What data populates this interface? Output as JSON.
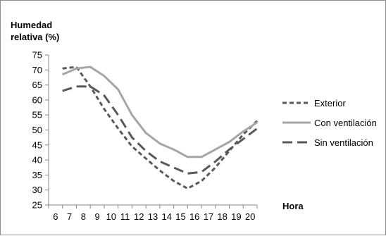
{
  "chart_data": {
    "type": "line",
    "title": "",
    "ylabel_lines": [
      "Humedad",
      "relativa (%)"
    ],
    "xlabel": "Hora",
    "x": [
      7,
      8,
      9,
      10,
      11,
      12,
      13,
      14,
      15,
      16,
      17,
      18,
      19,
      20,
      21
    ],
    "xticks": [
      6,
      7,
      8,
      9,
      10,
      11,
      12,
      13,
      14,
      15,
      16,
      17,
      18,
      19,
      20
    ],
    "xlim": [
      6,
      21
    ],
    "yticks": [
      25,
      30,
      35,
      40,
      45,
      50,
      55,
      60,
      65,
      70,
      75
    ],
    "ylim": [
      25,
      75
    ],
    "grid": false,
    "legend_position": "right",
    "series": [
      {
        "name": "Exterior",
        "color": "#595959",
        "dash": "short-dash",
        "values": [
          70.5,
          71,
          64.5,
          57,
          50.5,
          44.5,
          40.5,
          36.5,
          33,
          30.5,
          33,
          37.5,
          43,
          48.5,
          53
        ]
      },
      {
        "name": "Con ventilación",
        "color": "#a6a6a6",
        "dash": "solid",
        "values": [
          68.5,
          70.5,
          71,
          68,
          63.5,
          55,
          49,
          45.5,
          43.5,
          41,
          41,
          43.5,
          46,
          49.5,
          52.5
        ]
      },
      {
        "name": "Sin ventilación",
        "color": "#595959",
        "dash": "long-dash",
        "values": [
          63,
          64.5,
          64.5,
          61.5,
          55,
          47.5,
          43,
          39.5,
          37.5,
          35.5,
          36,
          39.5,
          43.5,
          47,
          50.5
        ]
      }
    ]
  }
}
